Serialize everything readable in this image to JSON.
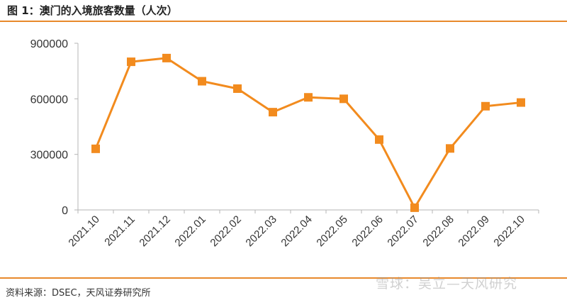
{
  "header": {
    "title": "图 1：澳门的入境旅客数量（人次）"
  },
  "footer": {
    "source": "资料来源：DSEC，天风证券研究所"
  },
  "watermark": {
    "text": "雪球：吴立—天风研究"
  },
  "colors": {
    "accent": "#e8892c",
    "series": "#f28b1e",
    "marker": "#f28b1e"
  },
  "chart_data": {
    "type": "line",
    "title": "",
    "xlabel": "",
    "ylabel": "",
    "categories": [
      "2021.10",
      "2021.11",
      "2021.12",
      "2022.01",
      "2022.02",
      "2022.03",
      "2022.04",
      "2022.05",
      "2022.06",
      "2022.07",
      "2022.08",
      "2022.09",
      "2022.10"
    ],
    "yticks": [
      "0",
      "300000",
      "600000",
      "900000"
    ],
    "ylim": [
      0,
      900000
    ],
    "series": [
      {
        "values": [
          330000,
          800000,
          820000,
          695000,
          655000,
          528000,
          608000,
          600000,
          380000,
          12000,
          332000,
          560000,
          580000
        ]
      }
    ],
    "grid": false,
    "legend": "none"
  }
}
